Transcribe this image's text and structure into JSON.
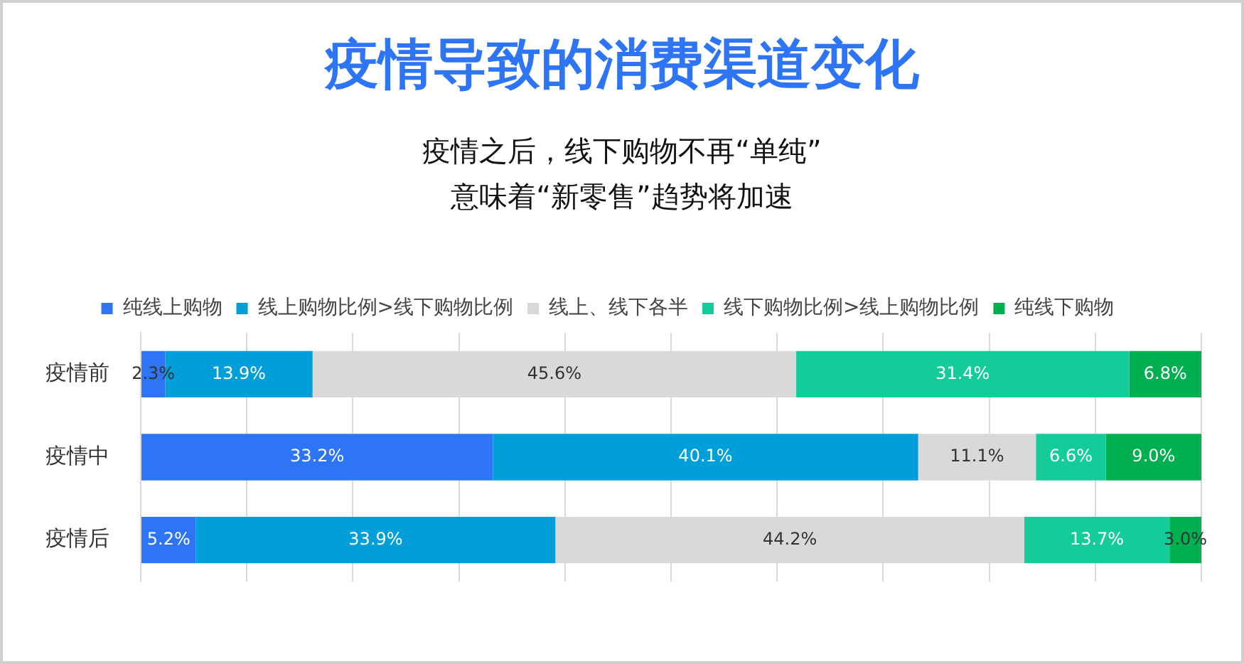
{
  "chart_data": {
    "type": "bar",
    "orientation": "horizontal",
    "stacked": true,
    "title": "疫情导致的消费渠道变化",
    "subtitle": "疫情之后，线下购物不再“单纯”\n意味着“新零售”趋势将加速",
    "categories": [
      "疫情前",
      "疫情中",
      "疫情后"
    ],
    "series": [
      {
        "name": "纯线上购物",
        "color": "#2e75f6",
        "values": [
          2.3,
          33.2,
          5.2
        ],
        "value_labels": [
          "2.3%",
          "33.2%",
          "5.2%"
        ]
      },
      {
        "name": "线上购物比例>线下购物比例",
        "color": "#009fd9",
        "values": [
          13.9,
          40.1,
          33.9
        ],
        "value_labels": [
          "13.9%",
          "40.1%",
          "33.9%"
        ]
      },
      {
        "name": "线上、线下各半",
        "color": "#d9d9d9",
        "values": [
          45.6,
          11.1,
          44.2
        ],
        "value_labels": [
          "45.6%",
          "11.1%",
          "44.2%"
        ]
      },
      {
        "name": "线下购物比例>线上购物比例",
        "color": "#14cc99",
        "values": [
          31.4,
          6.6,
          13.7
        ],
        "value_labels": [
          "31.4%",
          "6.6%",
          "13.7%"
        ]
      },
      {
        "name": "纯线下购物",
        "color": "#00b050",
        "values": [
          6.8,
          9.0,
          3.0
        ],
        "value_labels": [
          "6.8%",
          "9.0%",
          "3.0%"
        ]
      }
    ],
    "xlim": [
      0,
      100
    ],
    "xticks": [
      {
        "value": 0,
        "label": null
      },
      {
        "value": 10,
        "label": null
      },
      {
        "value": 20,
        "label": null
      },
      {
        "value": 30,
        "label": null
      },
      {
        "value": 40,
        "label": null
      },
      {
        "value": 50,
        "label": null
      },
      {
        "value": 60,
        "label": null
      },
      {
        "value": 70,
        "label": null
      },
      {
        "value": 80,
        "label": null
      },
      {
        "value": 90,
        "label": null
      },
      {
        "value": 100,
        "label": null
      }
    ],
    "tick_labels": "y",
    "grid": "x",
    "legend": "top",
    "marker": "square"
  }
}
